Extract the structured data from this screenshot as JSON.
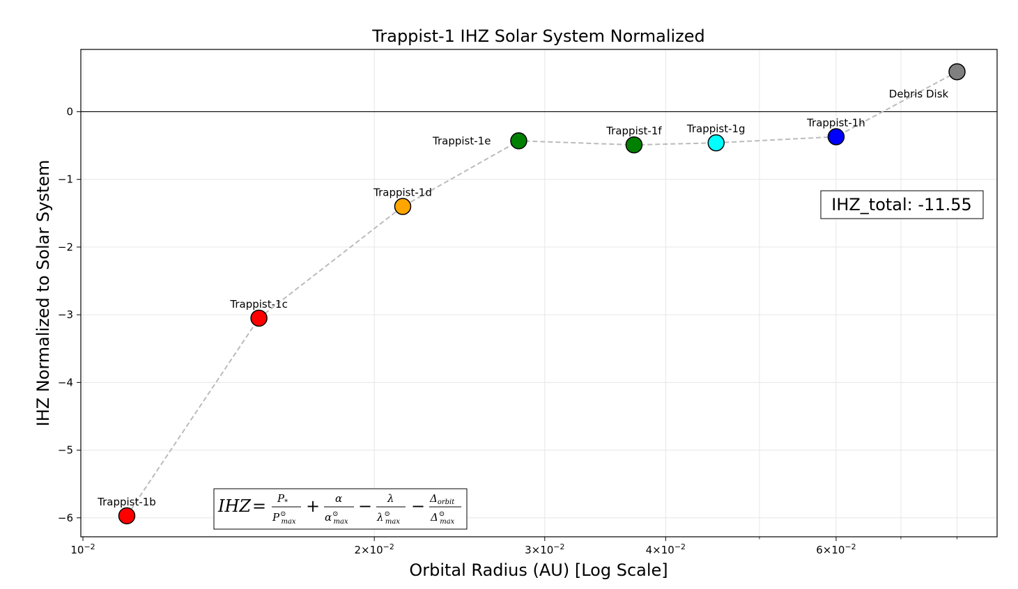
{
  "chart_data": {
    "type": "scatter",
    "title": "Trappist-1 IHZ Solar System Normalized",
    "xlabel": "Orbital Radius (AU) [Log Scale]",
    "ylabel": "IHZ Normalized to Solar System",
    "xscale": "log",
    "xlim": [
      0.00995,
      0.088
    ],
    "ylim": [
      -6.28,
      0.92
    ],
    "grid": true,
    "zero_line": 0,
    "connector_color": "#bbbbbb",
    "points": [
      {
        "label": "Trappist-1b",
        "x": 0.0111,
        "y": -5.97,
        "color": "#ff0000"
      },
      {
        "label": "Trappist-1c",
        "x": 0.0152,
        "y": -3.05,
        "color": "#ff0000"
      },
      {
        "label": "Trappist-1d",
        "x": 0.0214,
        "y": -1.4,
        "color": "#ffa500"
      },
      {
        "label": "Trappist-1e",
        "x": 0.0282,
        "y": -0.43,
        "color": "#008000"
      },
      {
        "label": "Trappist-1f",
        "x": 0.0371,
        "y": -0.49,
        "color": "#008000"
      },
      {
        "label": "Trappist-1g",
        "x": 0.0451,
        "y": -0.46,
        "color": "#00ffff"
      },
      {
        "label": "Trappist-1h",
        "x": 0.06,
        "y": -0.37,
        "color": "#0000ff"
      },
      {
        "label": "Debris Disk",
        "x": 0.08,
        "y": 0.59,
        "color": "#808080"
      }
    ],
    "x_ticks": [
      {
        "value": 0.01,
        "base": "10",
        "exp": "−2",
        "mant": ""
      },
      {
        "value": 0.02,
        "base": "10",
        "exp": "−2",
        "mant": "2×"
      },
      {
        "value": 0.03,
        "base": "10",
        "exp": "−2",
        "mant": "3×"
      },
      {
        "value": 0.04,
        "base": "10",
        "exp": "−2",
        "mant": "4×"
      },
      {
        "value": 0.06,
        "base": "10",
        "exp": "−2",
        "mant": "6×"
      }
    ],
    "x_minor_ticks": [
      0.05,
      0.07,
      0.08
    ],
    "y_ticks": [
      {
        "value": 0,
        "label": "0"
      },
      {
        "value": -1,
        "label": "−1"
      },
      {
        "value": -2,
        "label": "−2"
      },
      {
        "value": -3,
        "label": "−3"
      },
      {
        "value": -4,
        "label": "−4"
      },
      {
        "value": -5,
        "label": "−5"
      },
      {
        "value": -6,
        "label": "−6"
      }
    ],
    "annotations": {
      "total": "IHZ_total: -11.55",
      "formula": "IHZ = P*/P⊙max + α/α⊙max − λ/λ⊙max − Δorbit/Δ⊙max"
    }
  }
}
